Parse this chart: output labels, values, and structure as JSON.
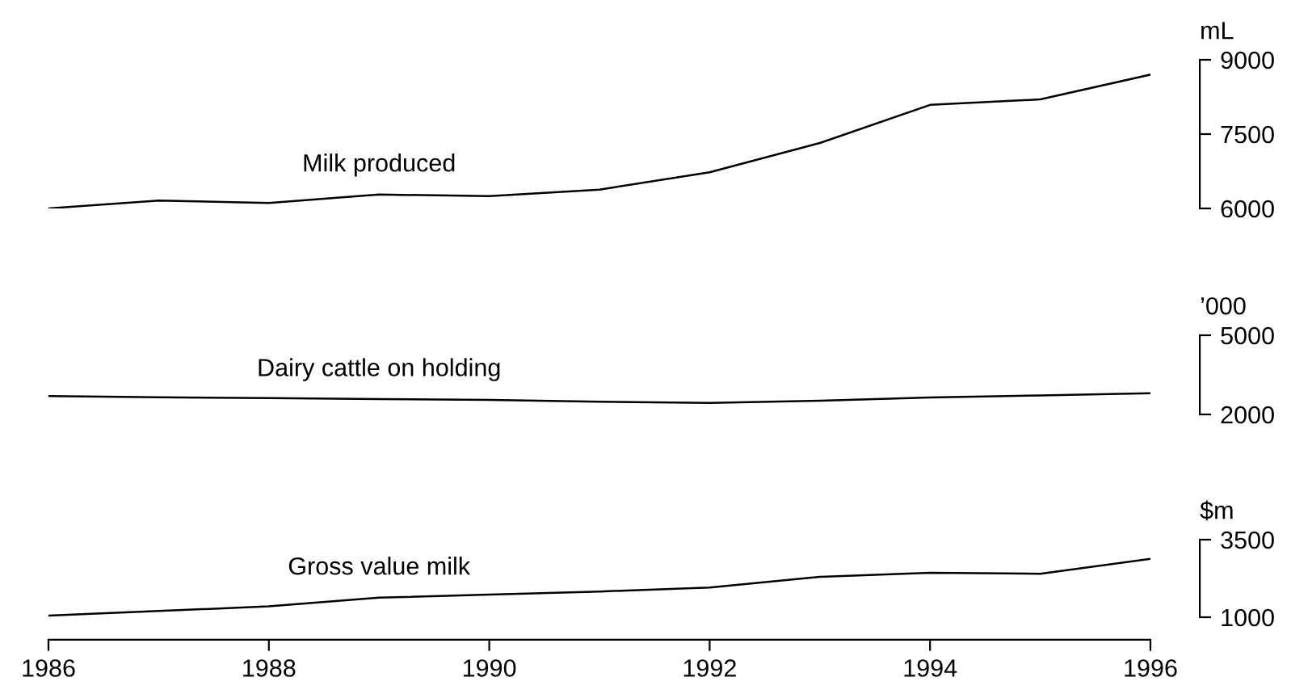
{
  "chart_data": [
    {
      "type": "line",
      "ylabel": "mL",
      "x": [
        1986,
        1987,
        1988,
        1989,
        1990,
        1991,
        1992,
        1993,
        1994,
        1995,
        1996
      ],
      "xlim": [
        1986,
        1996
      ],
      "ylim": [
        6000,
        9000
      ],
      "yticks": [
        6000,
        7500,
        9000
      ],
      "tick_labels": "y",
      "grid": false,
      "series": [
        {
          "name": "Milk produced",
          "color": "#000000",
          "values": [
            6000,
            6160,
            6110,
            6280,
            6250,
            6380,
            6730,
            7320,
            8090,
            8200,
            8700
          ]
        }
      ]
    },
    {
      "type": "line",
      "ylabel": "’000",
      "x": [
        1986,
        1987,
        1988,
        1989,
        1990,
        1991,
        1992,
        1993,
        1994,
        1995,
        1996
      ],
      "xlim": [
        1986,
        1996
      ],
      "ylim": [
        2000,
        5000
      ],
      "yticks": [
        2000,
        5000
      ],
      "tick_labels": "y",
      "grid": false,
      "series": [
        {
          "name": "Dairy cattle on holding",
          "color": "#000000",
          "values": [
            2700,
            2650,
            2620,
            2580,
            2550,
            2480,
            2440,
            2520,
            2640,
            2720,
            2800
          ]
        }
      ]
    },
    {
      "type": "line",
      "ylabel": "$m",
      "x": [
        1986,
        1987,
        1988,
        1989,
        1990,
        1991,
        1992,
        1993,
        1994,
        1995,
        1996
      ],
      "xlim": [
        1986,
        1996
      ],
      "xticks": [
        1986,
        1988,
        1990,
        1992,
        1994,
        1996
      ],
      "ylim": [
        1000,
        3500
      ],
      "yticks": [
        1000,
        3500
      ],
      "grid": false,
      "series": [
        {
          "name": "Gross value milk",
          "color": "#000000",
          "values": [
            1050,
            1200,
            1350,
            1630,
            1730,
            1830,
            1960,
            2300,
            2430,
            2400,
            2880
          ]
        }
      ]
    }
  ]
}
